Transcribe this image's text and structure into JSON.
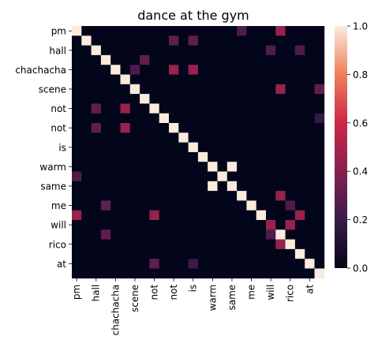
{
  "chart_data": {
    "type": "heatmap",
    "title": "dance at the gym",
    "xlabel": "",
    "ylabel": "",
    "row_labels": [
      "pm",
      "",
      "hall",
      "",
      "chachacha",
      "",
      "scene",
      "",
      "not",
      "",
      "not",
      "",
      "is",
      "",
      "warm",
      "",
      "same",
      "",
      "me",
      "",
      "will",
      "",
      "rico",
      "",
      "at",
      ""
    ],
    "col_labels": [
      "pm",
      "",
      "hall",
      "",
      "chachacha",
      "",
      "scene",
      "",
      "not",
      "",
      "not",
      "",
      "is",
      "",
      "warm",
      "",
      "same",
      "",
      "me",
      "",
      "will",
      "",
      "rico",
      "",
      "at",
      ""
    ],
    "x_tick_labels": [
      "pm",
      "hall",
      "chachacha",
      "scene",
      "not",
      "not",
      "is",
      "warm",
      "same",
      "me",
      "will",
      "rico",
      "at"
    ],
    "y_tick_labels": [
      "pm",
      "hall",
      "chachacha",
      "scene",
      "not",
      "not",
      "is",
      "warm",
      "same",
      "me",
      "will",
      "rico",
      "at"
    ],
    "colorbar": {
      "min": 0.0,
      "max": 1.0,
      "ticks": [
        "0.0",
        "0.2",
        "0.4",
        "0.6",
        "0.8",
        "1.0"
      ]
    },
    "cells": [
      {
        "r": 1,
        "c": 10,
        "v": 0.3
      },
      {
        "r": 1,
        "c": 12,
        "v": 0.3
      },
      {
        "r": 0,
        "c": 17,
        "v": 0.25
      },
      {
        "r": 0,
        "c": 21,
        "v": 0.45
      },
      {
        "r": 2,
        "c": 20,
        "v": 0.25
      },
      {
        "r": 2,
        "c": 23,
        "v": 0.25
      },
      {
        "r": 3,
        "c": 7,
        "v": 0.3
      },
      {
        "r": 4,
        "c": 6,
        "v": 0.25
      },
      {
        "r": 4,
        "c": 10,
        "v": 0.45
      },
      {
        "r": 4,
        "c": 12,
        "v": 0.45
      },
      {
        "r": 6,
        "c": 21,
        "v": 0.45
      },
      {
        "r": 6,
        "c": 25,
        "v": 0.3
      },
      {
        "r": 8,
        "c": 2,
        "v": 0.3
      },
      {
        "r": 8,
        "c": 5,
        "v": 0.45
      },
      {
        "r": 9,
        "c": 25,
        "v": 0.18
      },
      {
        "r": 10,
        "c": 2,
        "v": 0.3
      },
      {
        "r": 10,
        "c": 5,
        "v": 0.45
      },
      {
        "r": 14,
        "c": 16,
        "v": 1.0
      },
      {
        "r": 15,
        "c": 0,
        "v": 0.25
      },
      {
        "r": 15,
        "c": 15,
        "v": 1.0
      },
      {
        "r": 16,
        "c": 14,
        "v": 1.0
      },
      {
        "r": 16,
        "c": 16,
        "v": 1.0
      },
      {
        "r": 17,
        "c": 21,
        "v": 0.45
      },
      {
        "r": 18,
        "c": 3,
        "v": 0.3
      },
      {
        "r": 18,
        "c": 22,
        "v": 0.25
      },
      {
        "r": 19,
        "c": 0,
        "v": 0.45
      },
      {
        "r": 19,
        "c": 8,
        "v": 0.45
      },
      {
        "r": 19,
        "c": 23,
        "v": 0.45
      },
      {
        "r": 20,
        "c": 20,
        "v": 0.45
      },
      {
        "r": 20,
        "c": 22,
        "v": 0.45
      },
      {
        "r": 21,
        "c": 3,
        "v": 0.3
      },
      {
        "r": 21,
        "c": 20,
        "v": 0.25
      },
      {
        "r": 22,
        "c": 21,
        "v": 0.45
      },
      {
        "r": 24,
        "c": 8,
        "v": 0.3
      },
      {
        "r": 24,
        "c": 12,
        "v": 0.2
      }
    ],
    "diagonal_value": 1.0,
    "grid": false,
    "legend": "colorbar-right"
  }
}
